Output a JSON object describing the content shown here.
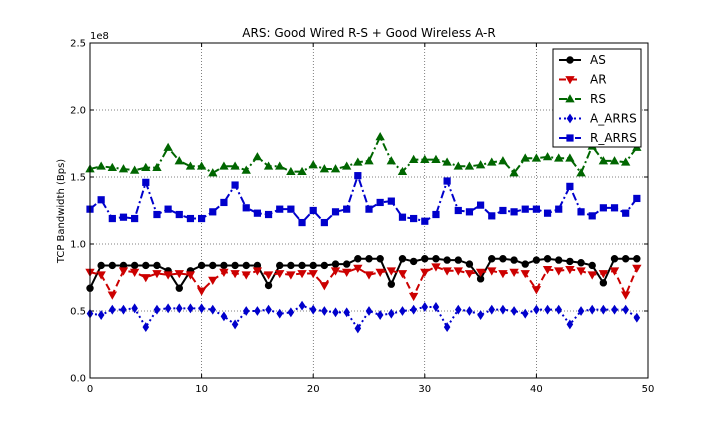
{
  "chart_data": {
    "type": "line",
    "title": "ARS: Good Wired R-S + Good Wireless A-R",
    "xlabel": "",
    "ylabel": "TCP Bandwidth (Bps)",
    "y_offset_text": "1e8",
    "xlim": [
      0,
      50
    ],
    "ylim": [
      0.0,
      2.5
    ],
    "x_ticks": [
      "0",
      "10",
      "20",
      "30",
      "40",
      "50"
    ],
    "y_ticks": [
      "0.0",
      "0.5",
      "1.0",
      "1.5",
      "2.0",
      "2.5"
    ],
    "grid": true,
    "legend_position": "top-right",
    "x": [
      0,
      1,
      2,
      3,
      4,
      5,
      6,
      7,
      8,
      9,
      10,
      11,
      12,
      13,
      14,
      15,
      16,
      17,
      18,
      19,
      20,
      21,
      22,
      23,
      24,
      25,
      26,
      27,
      28,
      29,
      30,
      31,
      32,
      33,
      34,
      35,
      36,
      37,
      38,
      39,
      40,
      41,
      42,
      43,
      44,
      45,
      46,
      47,
      48,
      49
    ],
    "series": [
      {
        "name": "AS",
        "color": "#000000",
        "marker": "circle",
        "dash": "solid",
        "values": [
          0.67,
          0.84,
          0.84,
          0.84,
          0.84,
          0.84,
          0.84,
          0.8,
          0.67,
          0.8,
          0.84,
          0.84,
          0.84,
          0.84,
          0.84,
          0.84,
          0.69,
          0.84,
          0.84,
          0.84,
          0.84,
          0.84,
          0.85,
          0.85,
          0.89,
          0.89,
          0.89,
          0.7,
          0.89,
          0.87,
          0.89,
          0.89,
          0.88,
          0.88,
          0.85,
          0.74,
          0.89,
          0.89,
          0.88,
          0.85,
          0.88,
          0.89,
          0.88,
          0.87,
          0.86,
          0.84,
          0.71,
          0.89,
          0.89,
          0.89
        ]
      },
      {
        "name": "AR",
        "color": "#cc0000",
        "marker": "triangle-down",
        "dash": "dash",
        "values": [
          0.79,
          0.77,
          0.62,
          0.8,
          0.79,
          0.75,
          0.78,
          0.77,
          0.78,
          0.77,
          0.65,
          0.73,
          0.79,
          0.78,
          0.77,
          0.8,
          0.77,
          0.78,
          0.77,
          0.78,
          0.78,
          0.69,
          0.8,
          0.79,
          0.82,
          0.77,
          0.79,
          0.8,
          0.78,
          0.61,
          0.79,
          0.83,
          0.8,
          0.8,
          0.78,
          0.79,
          0.8,
          0.78,
          0.79,
          0.78,
          0.66,
          0.81,
          0.8,
          0.81,
          0.8,
          0.77,
          0.78,
          0.8,
          0.62,
          0.82
        ]
      },
      {
        "name": "RS",
        "color": "#006600",
        "marker": "triangle-up",
        "dash": "dashdot",
        "values": [
          1.56,
          1.58,
          1.57,
          1.56,
          1.55,
          1.57,
          1.57,
          1.72,
          1.62,
          1.58,
          1.58,
          1.53,
          1.58,
          1.58,
          1.55,
          1.65,
          1.58,
          1.58,
          1.54,
          1.54,
          1.59,
          1.56,
          1.56,
          1.58,
          1.61,
          1.62,
          1.8,
          1.62,
          1.54,
          1.63,
          1.63,
          1.63,
          1.61,
          1.58,
          1.58,
          1.59,
          1.61,
          1.62,
          1.53,
          1.64,
          1.64,
          1.65,
          1.64,
          1.64,
          1.53,
          1.73,
          1.62,
          1.62,
          1.61,
          1.72
        ]
      },
      {
        "name": "A_ARRS",
        "color": "#0000cc",
        "marker": "diamond",
        "dash": "dot",
        "values": [
          0.48,
          0.47,
          0.51,
          0.51,
          0.52,
          0.38,
          0.51,
          0.52,
          0.52,
          0.52,
          0.52,
          0.51,
          0.46,
          0.4,
          0.5,
          0.5,
          0.51,
          0.48,
          0.49,
          0.54,
          0.51,
          0.5,
          0.49,
          0.49,
          0.37,
          0.5,
          0.47,
          0.48,
          0.5,
          0.51,
          0.53,
          0.53,
          0.38,
          0.51,
          0.5,
          0.47,
          0.51,
          0.51,
          0.5,
          0.48,
          0.51,
          0.51,
          0.51,
          0.4,
          0.5,
          0.51,
          0.51,
          0.51,
          0.51,
          0.45
        ]
      },
      {
        "name": "R_ARRS",
        "color": "#0000cc",
        "marker": "square",
        "dash": "dashdot",
        "values": [
          1.26,
          1.33,
          1.19,
          1.2,
          1.19,
          1.46,
          1.22,
          1.26,
          1.22,
          1.19,
          1.19,
          1.24,
          1.31,
          1.44,
          1.27,
          1.23,
          1.22,
          1.26,
          1.26,
          1.16,
          1.25,
          1.16,
          1.24,
          1.26,
          1.51,
          1.26,
          1.31,
          1.32,
          1.2,
          1.19,
          1.17,
          1.22,
          1.47,
          1.25,
          1.24,
          1.29,
          1.21,
          1.25,
          1.24,
          1.26,
          1.26,
          1.23,
          1.26,
          1.43,
          1.24,
          1.21,
          1.27,
          1.27,
          1.23,
          1.34
        ]
      }
    ]
  }
}
